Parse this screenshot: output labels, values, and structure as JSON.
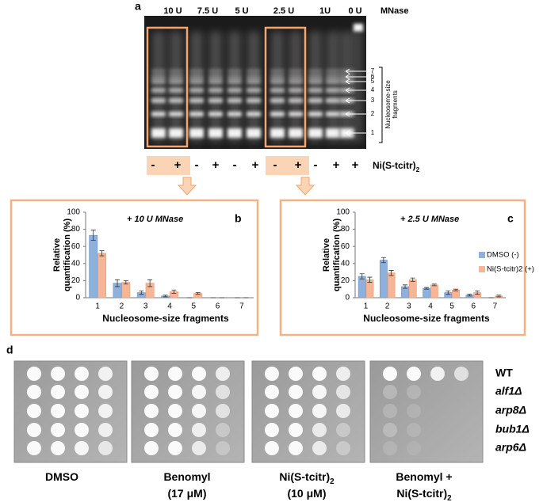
{
  "panel_a": {
    "letter": "a",
    "lanes": [
      "10 U",
      "7.5 U",
      "5 U",
      "2.5 U",
      "1U",
      "0 U"
    ],
    "enzyme": "MNase",
    "bands": [
      "1",
      "2",
      "3",
      "4",
      "5",
      "6",
      "7"
    ],
    "fragments_label": [
      "Nucleosome-size",
      "fragments"
    ],
    "signs": [
      "-",
      "+",
      "-",
      "+",
      "-",
      "+",
      "-",
      "+",
      "-",
      "+",
      "+"
    ],
    "treatment": [
      {
        "text": "Ni(S-tcitr)"
      },
      {
        "text": "2",
        "sub": true
      }
    ]
  },
  "chart_data": [
    {
      "type": "bar",
      "panel": "b",
      "annotation": "+ 10 U MNase",
      "ylabel": [
        "Relative",
        "quantification (%)"
      ],
      "xlabel": "Nucleosome-size fragments",
      "categories": [
        "1",
        "2",
        "3",
        "4",
        "5",
        "6",
        "7"
      ],
      "series": [
        {
          "color": "#8eb1dc",
          "values": [
            73,
            17,
            6,
            2,
            0,
            0,
            0
          ],
          "errors": [
            6,
            4,
            2,
            1,
            0,
            0,
            0
          ]
        },
        {
          "color": "#f6b594",
          "values": [
            52,
            18,
            17,
            7,
            5,
            0,
            0
          ],
          "errors": [
            3,
            2,
            4,
            2,
            1,
            0,
            0
          ]
        }
      ],
      "ylim": [
        0,
        100
      ],
      "yticks": [
        0,
        20,
        40,
        60,
        80,
        100
      ]
    },
    {
      "type": "bar",
      "panel": "c",
      "annotation": "+ 2.5 U MNase",
      "ylabel": [
        "Relative",
        "quantification (%)"
      ],
      "xlabel": "Nucleosome-size fragments",
      "categories": [
        "1",
        "2",
        "3",
        "4",
        "5",
        "6",
        "7"
      ],
      "series": [
        {
          "name": "DMSO (-)",
          "color": "#8eb1dc",
          "values": [
            25,
            44,
            13,
            11,
            6,
            3,
            0
          ],
          "errors": [
            3,
            3,
            2,
            1,
            2,
            1,
            0
          ]
        },
        {
          "name": "Ni(S-tcitr)2 (+)",
          "color": "#f6b594",
          "values": [
            21,
            29,
            21,
            15,
            9,
            6,
            2
          ],
          "errors": [
            3,
            3,
            2,
            1,
            1,
            2,
            1
          ]
        }
      ],
      "ylim": [
        0,
        100
      ],
      "yticks": [
        0,
        20,
        40,
        60,
        80,
        100
      ],
      "legend": "outside right"
    }
  ],
  "panel_d": {
    "letter": "d",
    "strains": [
      "WT",
      "alf1Δ",
      "arp8Δ",
      "bub1Δ",
      "arp6Δ"
    ],
    "plates": [
      {
        "lines": [
          [
            {
              "text": "DMSO"
            }
          ]
        ]
      },
      {
        "lines": [
          [
            {
              "text": "Benomyl"
            }
          ],
          [
            {
              "text": "(17 μM)"
            }
          ]
        ]
      },
      {
        "lines": [
          [
            {
              "text": "Ni(S-tcitr)"
            },
            {
              "text": "2",
              "sub": true
            }
          ],
          [
            {
              "text": "(10 μM)"
            }
          ]
        ]
      },
      {
        "lines": [
          [
            {
              "text": "Benomyl +"
            }
          ],
          [
            {
              "text": "Ni(S-tcitr)"
            },
            {
              "text": "2",
              "sub": true
            }
          ]
        ]
      }
    ]
  }
}
